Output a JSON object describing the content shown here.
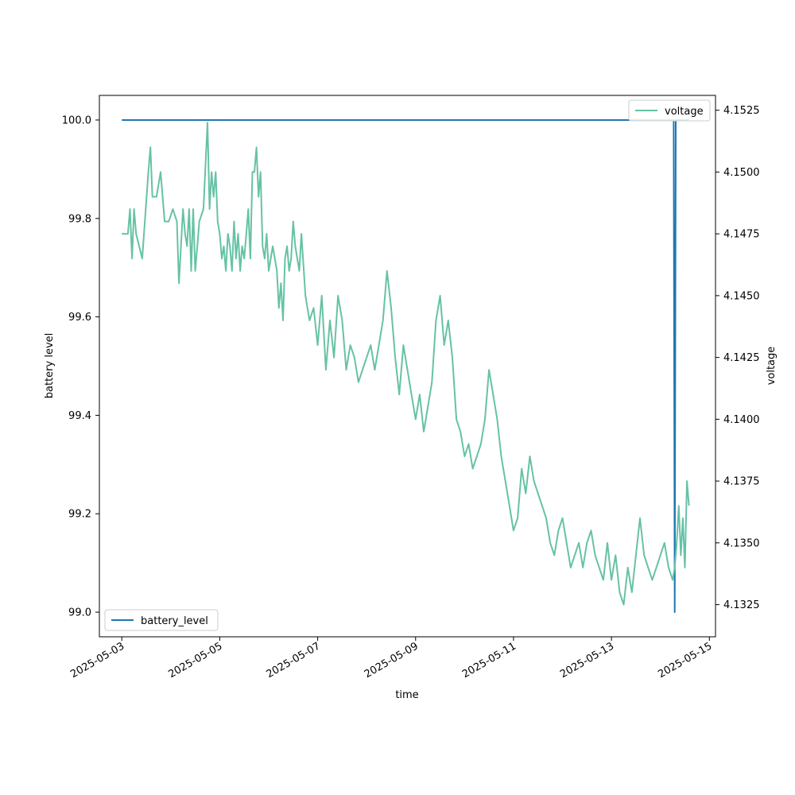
{
  "chart_data": {
    "type": "line",
    "xlabel": "time",
    "ylabel": "battery level",
    "y2label": "voltage",
    "x_ticks": [
      "2025-05-03",
      "2025-05-05",
      "2025-05-07",
      "2025-05-09",
      "2025-05-11",
      "2025-05-13",
      "2025-05-15"
    ],
    "y_ticks": [
      "99.0",
      "99.2",
      "99.4",
      "99.6",
      "99.8",
      "100.0"
    ],
    "y2_ticks": [
      "4.1325",
      "4.1350",
      "4.1375",
      "4.1400",
      "4.1425",
      "4.1450",
      "4.1475",
      "4.1500",
      "4.1525"
    ],
    "xlim": [
      "2025-05-02T13:00",
      "2025-05-15T03:00"
    ],
    "ylim": [
      98.95,
      100.05
    ],
    "y2lim": [
      4.1312,
      4.1531
    ],
    "legend": [
      {
        "name": "battery_level",
        "location": "lower-left",
        "color": "#1f77b4"
      },
      {
        "name": "voltage",
        "location": "upper-right",
        "color": "#66c2a5"
      }
    ],
    "series": [
      {
        "name": "battery_level",
        "axis": "left",
        "color": "#1f77b4",
        "x": [
          "2025-05-03T00:00",
          "2025-05-14T06:30",
          "2025-05-14T07:00",
          "2025-05-14T07:30",
          "2025-05-14T08:00",
          "2025-05-14T09:00",
          "2025-05-14T14:00"
        ],
        "y": [
          100.0,
          100.0,
          99.0,
          100.0,
          100.0,
          100.0,
          100.0
        ]
      },
      {
        "name": "voltage",
        "axis": "right",
        "color": "#66c2a5",
        "x": [
          "2025-05-03T00:00",
          "2025-05-03T02:00",
          "2025-05-03T03:00",
          "2025-05-03T04:00",
          "2025-05-03T05:00",
          "2025-05-03T06:00",
          "2025-05-03T07:00",
          "2025-05-03T10:00",
          "2025-05-03T13:00",
          "2025-05-03T14:00",
          "2025-05-03T15:00",
          "2025-05-03T17:00",
          "2025-05-03T19:00",
          "2025-05-03T21:00",
          "2025-05-03T23:00",
          "2025-05-04T01:00",
          "2025-05-04T03:00",
          "2025-05-04T04:00",
          "2025-05-04T06:00",
          "2025-05-04T07:00",
          "2025-05-04T08:00",
          "2025-05-04T09:00",
          "2025-05-04T10:00",
          "2025-05-04T11:00",
          "2025-05-04T12:00",
          "2025-05-04T13:00",
          "2025-05-04T14:00",
          "2025-05-04T16:00",
          "2025-05-04T18:00",
          "2025-05-04T19:00",
          "2025-05-04T20:00",
          "2025-05-04T21:00",
          "2025-05-04T22:00",
          "2025-05-04T23:00",
          "2025-05-05T00:00",
          "2025-05-05T01:00",
          "2025-05-05T02:00",
          "2025-05-05T03:00",
          "2025-05-05T04:00",
          "2025-05-05T05:00",
          "2025-05-05T06:00",
          "2025-05-05T07:00",
          "2025-05-05T08:00",
          "2025-05-05T09:00",
          "2025-05-05T10:00",
          "2025-05-05T11:00",
          "2025-05-05T12:00",
          "2025-05-05T13:00",
          "2025-05-05T14:00",
          "2025-05-05T15:00",
          "2025-05-05T16:00",
          "2025-05-05T17:00",
          "2025-05-05T18:00",
          "2025-05-05T19:00",
          "2025-05-05T20:00",
          "2025-05-05T21:00",
          "2025-05-05T22:00",
          "2025-05-05T23:00",
          "2025-05-06T00:00",
          "2025-05-06T02:00",
          "2025-05-06T03:00",
          "2025-05-06T04:00",
          "2025-05-06T05:00",
          "2025-05-06T06:00",
          "2025-05-06T07:00",
          "2025-05-06T08:00",
          "2025-05-06T09:00",
          "2025-05-06T10:00",
          "2025-05-06T11:00",
          "2025-05-06T12:00",
          "2025-05-06T13:00",
          "2025-05-06T14:00",
          "2025-05-06T15:00",
          "2025-05-06T16:00",
          "2025-05-06T18:00",
          "2025-05-06T20:00",
          "2025-05-06T22:00",
          "2025-05-07T00:00",
          "2025-05-07T02:00",
          "2025-05-07T04:00",
          "2025-05-07T06:00",
          "2025-05-07T08:00",
          "2025-05-07T10:00",
          "2025-05-07T12:00",
          "2025-05-07T14:00",
          "2025-05-07T16:00",
          "2025-05-07T18:00",
          "2025-05-07T20:00",
          "2025-05-07T22:00",
          "2025-05-08T00:00",
          "2025-05-08T02:00",
          "2025-05-08T04:00",
          "2025-05-08T06:00",
          "2025-05-08T08:00",
          "2025-05-08T10:00",
          "2025-05-08T12:00",
          "2025-05-08T14:00",
          "2025-05-08T16:00",
          "2025-05-08T18:00",
          "2025-05-08T20:00",
          "2025-05-08T22:00",
          "2025-05-09T00:00",
          "2025-05-09T02:00",
          "2025-05-09T04:00",
          "2025-05-09T06:00",
          "2025-05-09T08:00",
          "2025-05-09T10:00",
          "2025-05-09T12:00",
          "2025-05-09T14:00",
          "2025-05-09T16:00",
          "2025-05-09T18:00",
          "2025-05-09T20:00",
          "2025-05-09T22:00",
          "2025-05-10T00:00",
          "2025-05-10T02:00",
          "2025-05-10T04:00",
          "2025-05-10T06:00",
          "2025-05-10T08:00",
          "2025-05-10T10:00",
          "2025-05-10T12:00",
          "2025-05-10T14:00",
          "2025-05-10T16:00",
          "2025-05-10T18:00",
          "2025-05-10T20:00",
          "2025-05-10T22:00",
          "2025-05-11T00:00",
          "2025-05-11T02:00",
          "2025-05-11T04:00",
          "2025-05-11T06:00",
          "2025-05-11T08:00",
          "2025-05-11T10:00",
          "2025-05-11T12:00",
          "2025-05-11T14:00",
          "2025-05-11T16:00",
          "2025-05-11T18:00",
          "2025-05-11T20:00",
          "2025-05-11T22:00",
          "2025-05-12T00:00",
          "2025-05-12T02:00",
          "2025-05-12T04:00",
          "2025-05-12T06:00",
          "2025-05-12T08:00",
          "2025-05-12T10:00",
          "2025-05-12T12:00",
          "2025-05-12T14:00",
          "2025-05-12T16:00",
          "2025-05-12T18:00",
          "2025-05-12T20:00",
          "2025-05-12T22:00",
          "2025-05-13T00:00",
          "2025-05-13T02:00",
          "2025-05-13T04:00",
          "2025-05-13T06:00",
          "2025-05-13T08:00",
          "2025-05-13T10:00",
          "2025-05-13T12:00",
          "2025-05-13T14:00",
          "2025-05-13T16:00",
          "2025-05-13T18:00",
          "2025-05-13T20:00",
          "2025-05-13T22:00",
          "2025-05-14T00:00",
          "2025-05-14T02:00",
          "2025-05-14T04:00",
          "2025-05-14T06:00",
          "2025-05-14T07:00",
          "2025-05-14T08:00",
          "2025-05-14T09:00",
          "2025-05-14T10:00",
          "2025-05-14T11:00",
          "2025-05-14T12:00",
          "2025-05-14T13:00",
          "2025-05-14T14:00"
        ],
        "y": [
          4.1475,
          4.1475,
          4.1475,
          4.1485,
          4.1465,
          4.1485,
          4.1475,
          4.1465,
          4.15,
          4.151,
          4.149,
          4.149,
          4.15,
          4.148,
          4.148,
          4.1485,
          4.148,
          4.1455,
          4.1485,
          4.1475,
          4.147,
          4.1485,
          4.146,
          4.1485,
          4.146,
          4.147,
          4.148,
          4.1485,
          4.152,
          4.1485,
          4.15,
          4.149,
          4.15,
          4.148,
          4.1475,
          4.1465,
          4.147,
          4.146,
          4.1475,
          4.147,
          4.146,
          4.148,
          4.1465,
          4.1475,
          4.146,
          4.147,
          4.1465,
          4.1475,
          4.1485,
          4.1465,
          4.15,
          4.15,
          4.151,
          4.149,
          4.15,
          4.147,
          4.1465,
          4.1475,
          4.146,
          4.147,
          4.1465,
          4.146,
          4.1445,
          4.1455,
          4.144,
          4.1465,
          4.147,
          4.146,
          4.1465,
          4.148,
          4.147,
          4.1465,
          4.146,
          4.1475,
          4.145,
          4.144,
          4.1445,
          4.143,
          4.145,
          4.142,
          4.144,
          4.1425,
          4.145,
          4.144,
          4.142,
          4.143,
          4.1425,
          4.1415,
          4.142,
          4.1425,
          4.143,
          4.142,
          4.143,
          4.144,
          4.146,
          4.1445,
          4.1425,
          4.141,
          4.143,
          4.142,
          4.141,
          4.14,
          4.141,
          4.1395,
          4.1405,
          4.1415,
          4.144,
          4.145,
          4.143,
          4.144,
          4.1425,
          4.14,
          4.1395,
          4.1385,
          4.139,
          4.138,
          4.1385,
          4.139,
          4.14,
          4.142,
          4.141,
          4.14,
          4.1385,
          4.1375,
          4.1365,
          4.1355,
          4.136,
          4.138,
          4.137,
          4.1385,
          4.1375,
          4.137,
          4.1365,
          4.136,
          4.135,
          4.1345,
          4.1355,
          4.136,
          4.135,
          4.134,
          4.1345,
          4.135,
          4.134,
          4.135,
          4.1355,
          4.1345,
          4.134,
          4.1335,
          4.135,
          4.1335,
          4.1345,
          4.133,
          4.1325,
          4.134,
          4.133,
          4.1345,
          4.136,
          4.1345,
          4.134,
          4.1335,
          4.134,
          4.1345,
          4.135,
          4.134,
          4.1335,
          4.134,
          4.135,
          4.1365,
          4.1345,
          4.136,
          4.134,
          4.1375,
          4.1365
        ]
      }
    ]
  }
}
